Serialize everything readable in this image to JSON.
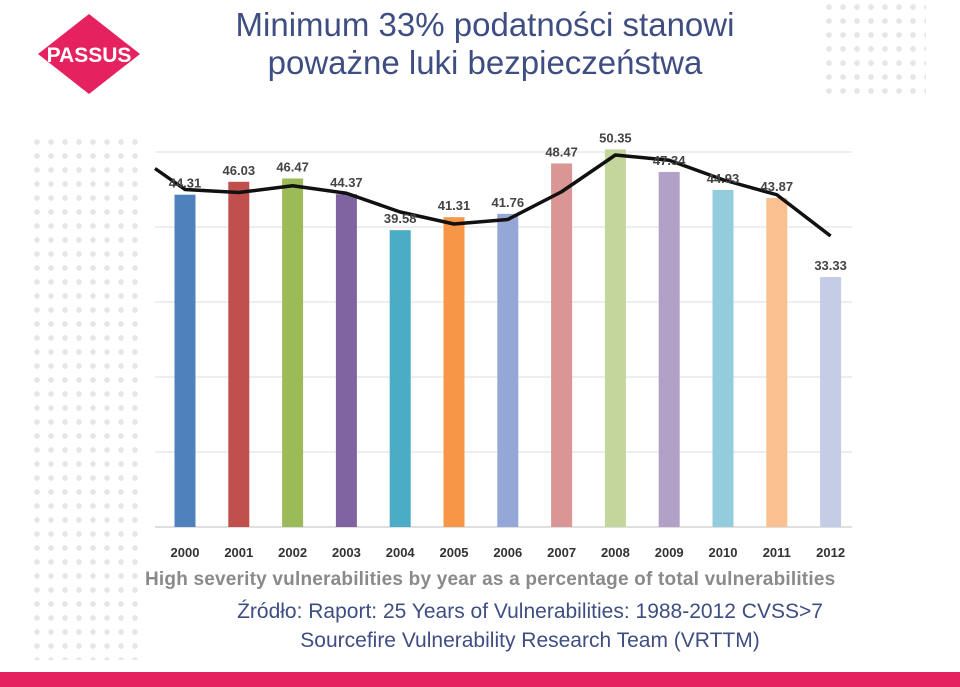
{
  "logo": {
    "text": "PASSUS",
    "color": "#e5215f"
  },
  "slide": {
    "title_line1": "Minimum 33% podatności stanowi",
    "title_line2": "poważne luki bezpieczeństwa",
    "source_line1": "Źródło:  Raport: 25 Years of Vulnerabilities: 1988-2012 CVSS>7",
    "source_line2": "Sourcefire Vulnerability Research Team (VRTTM)",
    "accent_color": "#e5215f",
    "title_color": "#3f4e82"
  },
  "chart_data": {
    "type": "bar",
    "title": "High severity vulnerabilities by year as a percentage of total vulnerabilities",
    "categories": [
      "2000",
      "2001",
      "2002",
      "2003",
      "2004",
      "2005",
      "2006",
      "2007",
      "2008",
      "2009",
      "2010",
      "2011",
      "2012"
    ],
    "values": [
      44.31,
      46.03,
      46.47,
      44.37,
      39.58,
      41.31,
      41.76,
      48.47,
      50.35,
      47.34,
      44.93,
      43.87,
      33.33
    ],
    "value_labels": [
      "44.31",
      "46.03",
      "46.47",
      "44.37",
      "39.58",
      "41.31",
      "41.76",
      "48.47",
      "50.35",
      "47.34",
      "44.93",
      "43.87",
      "33.33"
    ],
    "bar_colors": [
      "#4f81bd",
      "#c0504d",
      "#9bbb59",
      "#8064a2",
      "#4bacc6",
      "#f79646",
      "#95a7d6",
      "#d99694",
      "#c3d69b",
      "#b2a1c7",
      "#93cddd",
      "#fac090",
      "#c5cde6"
    ],
    "trend_line": {
      "type": "line",
      "values": [
        47.8,
        45.0,
        44.6,
        45.5,
        44.5,
        42.0,
        40.4,
        41.0,
        44.7,
        49.6,
        48.9,
        46.3,
        44.3,
        38.8
      ]
    },
    "ylim": [
      0,
      50
    ],
    "grid": true,
    "legend": "none",
    "xlabel": "",
    "ylabel": ""
  }
}
